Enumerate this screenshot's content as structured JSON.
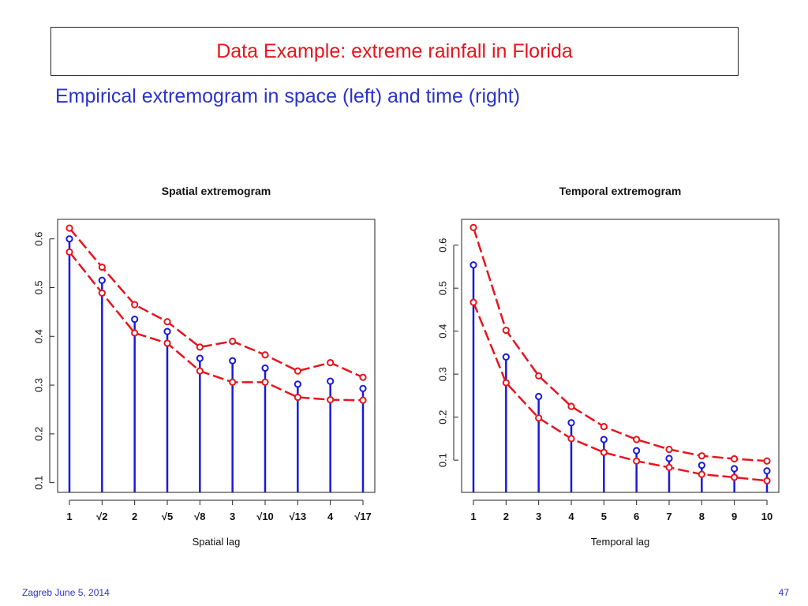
{
  "slide": {
    "title": "Data Example:  extreme rainfall in Florida",
    "subtitle": "Empirical extremogram in space (left) and time (right)",
    "footer_left": "Zagreb June 5, 2014",
    "page_number": "47"
  },
  "chart_data": [
    {
      "type": "line",
      "title": "Spatial extremogram",
      "xlabel": "Spatial lag",
      "ylabel": "",
      "categories": [
        "1",
        "√2",
        "2",
        "√5",
        "√8",
        "3",
        "√10",
        "√13",
        "4",
        "√17"
      ],
      "ylim": [
        0.08,
        0.64
      ],
      "yticks": [
        0.1,
        0.2,
        0.3,
        0.4,
        0.5,
        0.6
      ],
      "series": [
        {
          "role": "estimate",
          "style": "blue stems with circles",
          "values": [
            0.6,
            0.515,
            0.435,
            0.41,
            0.355,
            0.35,
            0.335,
            0.302,
            0.308,
            0.293
          ]
        },
        {
          "role": "upper",
          "style": "red dashed with circles",
          "values": [
            0.622,
            0.542,
            0.465,
            0.43,
            0.378,
            0.39,
            0.362,
            0.329,
            0.346,
            0.316
          ]
        },
        {
          "role": "lower",
          "style": "red dashed with circles",
          "values": [
            0.573,
            0.489,
            0.407,
            0.386,
            0.329,
            0.306,
            0.306,
            0.275,
            0.27,
            0.269
          ]
        }
      ],
      "colors": {
        "estimate": "#1a1adb",
        "bounds": "#e8141e"
      }
    },
    {
      "type": "line",
      "title": "Temporal extremogram",
      "xlabel": "Temporal lag",
      "ylabel": "",
      "categories": [
        "1",
        "2",
        "3",
        "4",
        "5",
        "6",
        "7",
        "8",
        "9",
        "10"
      ],
      "ylim": [
        0.025,
        0.66
      ],
      "yticks": [
        0.1,
        0.2,
        0.3,
        0.4,
        0.5,
        0.6
      ],
      "series": [
        {
          "role": "estimate",
          "style": "blue stems with circles",
          "values": [
            0.554,
            0.34,
            0.248,
            0.187,
            0.148,
            0.122,
            0.104,
            0.088,
            0.08,
            0.075
          ]
        },
        {
          "role": "upper",
          "style": "red dashed with circles",
          "values": [
            0.641,
            0.402,
            0.296,
            0.225,
            0.178,
            0.148,
            0.125,
            0.11,
            0.103,
            0.098
          ]
        },
        {
          "role": "lower",
          "style": "red dashed with circles",
          "values": [
            0.467,
            0.28,
            0.198,
            0.15,
            0.118,
            0.098,
            0.083,
            0.067,
            0.06,
            0.052
          ]
        }
      ],
      "colors": {
        "estimate": "#1a1adb",
        "bounds": "#e8141e"
      }
    }
  ]
}
